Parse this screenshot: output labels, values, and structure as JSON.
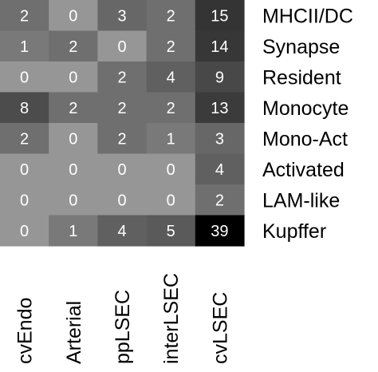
{
  "chart_data": {
    "type": "heatmap",
    "rows": [
      "MHCII/DC",
      "Synapse",
      "Resident",
      "Monocyte",
      "Mono-Act",
      "Activated",
      "LAM-like",
      "Kupffer"
    ],
    "columns": [
      "cvEndo",
      "Arterial",
      "ppLSEC",
      "interLSEC",
      "cvLSEC"
    ],
    "values": [
      [
        2,
        0,
        3,
        2,
        15
      ],
      [
        1,
        2,
        0,
        2,
        14
      ],
      [
        0,
        0,
        2,
        4,
        9
      ],
      [
        8,
        2,
        2,
        2,
        13
      ],
      [
        2,
        0,
        2,
        1,
        3
      ],
      [
        0,
        0,
        0,
        0,
        4
      ],
      [
        0,
        0,
        0,
        0,
        2
      ],
      [
        0,
        1,
        4,
        5,
        39
      ]
    ],
    "color_scale": "grayscale, darker = higher",
    "cell_text_color": "#ffffff",
    "label_color": "#000000"
  }
}
